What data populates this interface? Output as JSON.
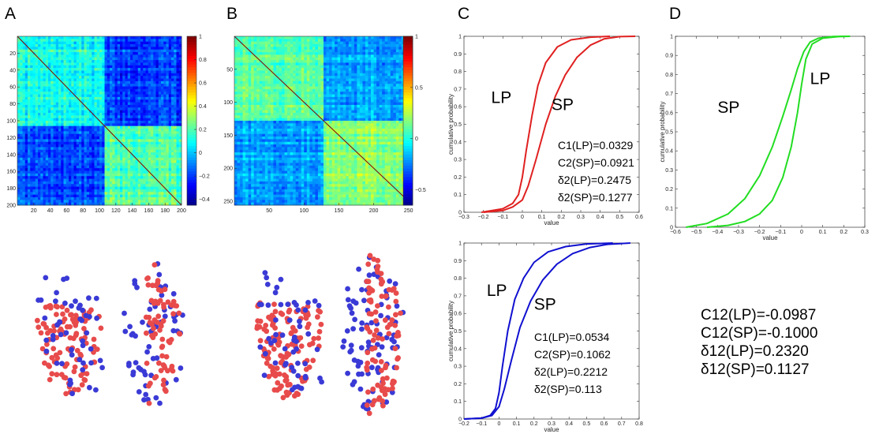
{
  "panel_letters": [
    "A",
    "B",
    "C",
    "D"
  ],
  "colors": {
    "lp_sp_red": "#e02020",
    "green": "#22dd22",
    "blue": "#1010d0",
    "dot_red": "#e84b4b",
    "dot_blue": "#3a3ad6"
  },
  "chart_data": [
    {
      "id": "A-heatmap",
      "type": "heatmap",
      "matrix_size": 200,
      "block_split": 107,
      "colorscale": "jet",
      "x_ticks": [
        "20",
        "40",
        "60",
        "80",
        "100",
        "120",
        "140",
        "160",
        "180",
        "200"
      ],
      "y_ticks": [
        "20",
        "40",
        "60",
        "80",
        "100",
        "120",
        "140",
        "160",
        "180",
        "200"
      ],
      "tick_values": [
        20,
        40,
        60,
        80,
        100,
        120,
        140,
        160,
        180,
        200
      ],
      "colorbar_range": [
        -0.45,
        1
      ],
      "colorbar_ticks": [
        {
          "v": 1,
          "t": "1"
        },
        {
          "v": 0.8,
          "t": "0.8"
        },
        {
          "v": 0.6,
          "t": "0.6"
        },
        {
          "v": 0.4,
          "t": "0.4"
        },
        {
          "v": 0.2,
          "t": "0.2"
        },
        {
          "v": 0,
          "t": "0"
        },
        {
          "v": -0.2,
          "t": "−0.2"
        },
        {
          "v": -0.4,
          "t": "−0.4"
        }
      ]
    },
    {
      "id": "B-heatmap",
      "type": "heatmap",
      "matrix_size": 256,
      "block_split": 130,
      "colorscale": "jet",
      "x_ticks": [
        "50",
        "100",
        "150",
        "200",
        "250"
      ],
      "y_ticks": [
        "50",
        "100",
        "150",
        "200",
        "250"
      ],
      "tick_values": [
        50,
        100,
        150,
        200,
        250
      ],
      "colorbar_range": [
        -0.65,
        1
      ],
      "colorbar_ticks": [
        {
          "v": 1,
          "t": "1"
        },
        {
          "v": 0.5,
          "t": "0.5"
        },
        {
          "v": 0,
          "t": "0"
        },
        {
          "v": -0.5,
          "t": "−0.5"
        }
      ]
    },
    {
      "id": "C-top",
      "type": "line",
      "xlabel": "value",
      "ylabel": "cumulative probability",
      "xlim": [
        -0.3,
        0.6
      ],
      "ylim": [
        0,
        1
      ],
      "x_ticks": [
        {
          "v": -0.3,
          "t": "−0.3"
        },
        {
          "v": -0.2,
          "t": "−0.2"
        },
        {
          "v": -0.1,
          "t": "−0.1"
        },
        {
          "v": 0,
          "t": "0"
        },
        {
          "v": 0.1,
          "t": "0.1"
        },
        {
          "v": 0.2,
          "t": "0.2"
        },
        {
          "v": 0.3,
          "t": "0.3"
        },
        {
          "v": 0.4,
          "t": "0.4"
        },
        {
          "v": 0.5,
          "t": "0.5"
        },
        {
          "v": 0.6,
          "t": "0.6"
        }
      ],
      "y_ticks": [
        {
          "v": 0,
          "t": "0"
        },
        {
          "v": 0.1,
          "t": "0.1"
        },
        {
          "v": 0.2,
          "t": "0.2"
        },
        {
          "v": 0.3,
          "t": "0.3"
        },
        {
          "v": 0.4,
          "t": "0.4"
        },
        {
          "v": 0.5,
          "t": "0.5"
        },
        {
          "v": 0.6,
          "t": "0.6"
        },
        {
          "v": 0.7,
          "t": "0.7"
        },
        {
          "v": 0.8,
          "t": "0.8"
        },
        {
          "v": 0.9,
          "t": "0.9"
        },
        {
          "v": 1,
          "t": "1"
        }
      ],
      "color": "#e02020",
      "series": [
        {
          "name": "LP",
          "x": [
            -0.21,
            -0.1,
            -0.05,
            -0.02,
            0,
            0.02,
            0.05,
            0.08,
            0.12,
            0.18,
            0.25,
            0.35,
            0.45
          ],
          "y": [
            0,
            0.02,
            0.05,
            0.1,
            0.2,
            0.35,
            0.55,
            0.72,
            0.85,
            0.94,
            0.98,
            0.995,
            1
          ]
        },
        {
          "name": "SP",
          "x": [
            -0.2,
            -0.1,
            -0.05,
            0,
            0.03,
            0.07,
            0.12,
            0.17,
            0.22,
            0.28,
            0.35,
            0.42,
            0.5,
            0.58
          ],
          "y": [
            0,
            0.01,
            0.03,
            0.07,
            0.15,
            0.3,
            0.5,
            0.66,
            0.78,
            0.88,
            0.95,
            0.985,
            0.998,
            1
          ]
        }
      ],
      "curve_labels": [
        {
          "text": "LP",
          "x": -0.16,
          "y": 0.62
        },
        {
          "text": "SP",
          "x": 0.15,
          "y": 0.58
        }
      ],
      "stats": [
        "C1(LP)=0.0329",
        "C2(SP)=0.0921",
        "δ2(LP)=0.2475",
        "δ2(SP)=0.1277"
      ]
    },
    {
      "id": "D-top",
      "type": "line",
      "xlabel": "value",
      "ylabel": "cumulative probability",
      "xlim": [
        -0.6,
        0.3
      ],
      "ylim": [
        0,
        1
      ],
      "x_ticks": [
        {
          "v": -0.6,
          "t": "−0.6"
        },
        {
          "v": -0.5,
          "t": "−0.5"
        },
        {
          "v": -0.4,
          "t": "−0.4"
        },
        {
          "v": -0.3,
          "t": "−0.3"
        },
        {
          "v": -0.2,
          "t": "−0.2"
        },
        {
          "v": -0.1,
          "t": "−0.1"
        },
        {
          "v": 0,
          "t": "0"
        },
        {
          "v": 0.1,
          "t": "0.1"
        },
        {
          "v": 0.2,
          "t": "0.2"
        },
        {
          "v": 0.3,
          "t": "0.3"
        }
      ],
      "y_ticks": [
        {
          "v": 0,
          "t": "0"
        },
        {
          "v": 0.1,
          "t": "0.1"
        },
        {
          "v": 0.2,
          "t": "0.2"
        },
        {
          "v": 0.3,
          "t": "0.3"
        },
        {
          "v": 0.4,
          "t": "0.4"
        },
        {
          "v": 0.5,
          "t": "0.5"
        },
        {
          "v": 0.6,
          "t": "0.6"
        },
        {
          "v": 0.7,
          "t": "0.7"
        },
        {
          "v": 0.8,
          "t": "0.8"
        },
        {
          "v": 0.9,
          "t": "0.9"
        },
        {
          "v": 1,
          "t": "1"
        }
      ],
      "color": "#22dd22",
      "series": [
        {
          "name": "SP",
          "x": [
            -0.55,
            -0.45,
            -0.35,
            -0.27,
            -0.2,
            -0.14,
            -0.09,
            -0.05,
            -0.02,
            0.01,
            0.04,
            0.08,
            0.15,
            0.23
          ],
          "y": [
            0,
            0.02,
            0.07,
            0.15,
            0.27,
            0.42,
            0.58,
            0.72,
            0.83,
            0.92,
            0.97,
            0.99,
            0.999,
            1
          ]
        },
        {
          "name": "LP",
          "x": [
            -0.45,
            -0.35,
            -0.27,
            -0.2,
            -0.14,
            -0.09,
            -0.05,
            -0.02,
            0,
            0.02,
            0.05,
            0.1,
            0.18,
            0.23
          ],
          "y": [
            0,
            0.01,
            0.03,
            0.07,
            0.14,
            0.26,
            0.42,
            0.6,
            0.75,
            0.88,
            0.96,
            0.99,
            0.999,
            1
          ]
        }
      ],
      "curve_labels": [
        {
          "text": "SP",
          "x": -0.4,
          "y": 0.6
        },
        {
          "text": "LP",
          "x": 0.04,
          "y": 0.75
        }
      ]
    },
    {
      "id": "C-bottom",
      "type": "line",
      "xlabel": "value",
      "ylabel": "cumulative probability",
      "xlim": [
        -0.2,
        0.8
      ],
      "ylim": [
        0,
        1
      ],
      "x_ticks": [
        {
          "v": -0.2,
          "t": "−0.2"
        },
        {
          "v": -0.1,
          "t": "−0.1"
        },
        {
          "v": 0,
          "t": "0"
        },
        {
          "v": 0.1,
          "t": "0.1"
        },
        {
          "v": 0.2,
          "t": "0.2"
        },
        {
          "v": 0.3,
          "t": "0.3"
        },
        {
          "v": 0.4,
          "t": "0.4"
        },
        {
          "v": 0.5,
          "t": "0.5"
        },
        {
          "v": 0.6,
          "t": "0.6"
        },
        {
          "v": 0.7,
          "t": "0.7"
        },
        {
          "v": 0.8,
          "t": "0.8"
        }
      ],
      "y_ticks": [
        {
          "v": 0,
          "t": "0"
        },
        {
          "v": 0.1,
          "t": "0.1"
        },
        {
          "v": 0.2,
          "t": "0.2"
        },
        {
          "v": 0.3,
          "t": "0.3"
        },
        {
          "v": 0.4,
          "t": "0.4"
        },
        {
          "v": 0.5,
          "t": "0.5"
        },
        {
          "v": 0.6,
          "t": "0.6"
        },
        {
          "v": 0.7,
          "t": "0.7"
        },
        {
          "v": 0.8,
          "t": "0.8"
        },
        {
          "v": 0.9,
          "t": "0.9"
        },
        {
          "v": 1,
          "t": "1"
        }
      ],
      "color": "#1010d0",
      "series": [
        {
          "name": "LP",
          "x": [
            -0.2,
            -0.1,
            -0.05,
            -0.02,
            0,
            0.02,
            0.05,
            0.09,
            0.14,
            0.2,
            0.28,
            0.38,
            0.5,
            0.65
          ],
          "y": [
            0,
            0.005,
            0.02,
            0.06,
            0.15,
            0.3,
            0.5,
            0.68,
            0.8,
            0.89,
            0.95,
            0.98,
            0.995,
            1
          ]
        },
        {
          "name": "SP",
          "x": [
            -0.2,
            -0.1,
            -0.04,
            0,
            0.03,
            0.07,
            0.12,
            0.18,
            0.25,
            0.33,
            0.42,
            0.52,
            0.62,
            0.75
          ],
          "y": [
            0,
            0.005,
            0.02,
            0.07,
            0.17,
            0.33,
            0.52,
            0.67,
            0.79,
            0.88,
            0.94,
            0.975,
            0.993,
            1
          ]
        }
      ],
      "curve_labels": [
        {
          "text": "LP",
          "x": -0.07,
          "y": 0.7
        },
        {
          "text": "SP",
          "x": 0.2,
          "y": 0.62
        }
      ],
      "stats": [
        "C1(LP)=0.0534",
        "C2(SP)=0.1062",
        "δ2(LP)=0.2212",
        "δ2(SP)=0.113"
      ]
    },
    {
      "id": "A-scatter",
      "type": "scatter",
      "groups": [
        {
          "color": "#e84b4b",
          "count": 110,
          "cluster": "left"
        },
        {
          "color": "#3a3ad6",
          "count": 50,
          "cluster": "left"
        },
        {
          "color": "#3a3ad6",
          "count": 60,
          "cluster": "right"
        },
        {
          "color": "#e84b4b",
          "count": 70,
          "cluster": "right"
        }
      ]
    },
    {
      "id": "B-scatter",
      "type": "scatter",
      "groups": [
        {
          "color": "#e84b4b",
          "count": 140,
          "cluster": "left"
        },
        {
          "color": "#3a3ad6",
          "count": 55,
          "cluster": "left"
        },
        {
          "color": "#3a3ad6",
          "count": 90,
          "cluster": "right"
        },
        {
          "color": "#e84b4b",
          "count": 95,
          "cluster": "right"
        }
      ]
    }
  ],
  "d_stats": [
    "C12(LP)=-0.0987",
    "C12(SP)=-0.1000",
    "δ12(LP)=0.2320",
    "δ12(SP)=0.1127"
  ]
}
